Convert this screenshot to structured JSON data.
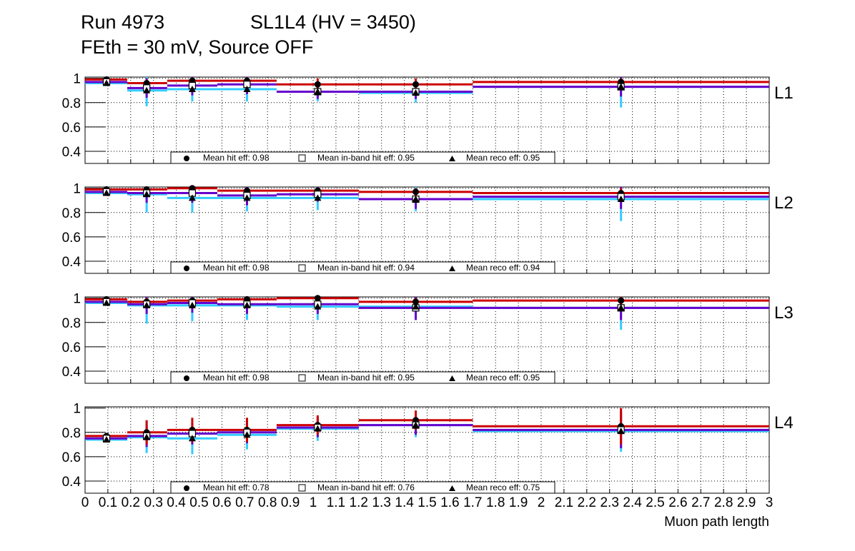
{
  "header": {
    "run": "Run 4973",
    "chamber": "SL1L4 (HV = 3450)",
    "conditions": "FEth = 30 mV, Source OFF"
  },
  "colors": {
    "hit": "#cc0000",
    "inband": "#6600cc",
    "reco": "#33ccff"
  },
  "chart_data": {
    "type": "line",
    "xlabel": "Muon path length",
    "xlim": [
      0,
      3
    ],
    "ylim": [
      0.3,
      1.01
    ],
    "grid": true,
    "x_tick_labels": [
      "0",
      "0.1",
      "0.2",
      "0.3",
      "0.4",
      "0.5",
      "0.6",
      "0.7",
      "0.8",
      "0.9",
      "1",
      "1.1",
      "1.2",
      "1.3",
      "1.4",
      "1.5",
      "1.6",
      "1.7",
      "1.8",
      "1.9",
      "2",
      "2.1",
      "2.2",
      "2.3",
      "2.4",
      "2.5",
      "2.6",
      "2.7",
      "2.8",
      "2.9",
      "3"
    ],
    "y_tick_labels": [
      "0.4",
      "0.6",
      "0.8",
      "1"
    ],
    "bin_edges": [
      0,
      0.185,
      0.36,
      0.58,
      0.84,
      1.2,
      1.7,
      3
    ],
    "point_x": [
      0.094,
      0.27,
      0.47,
      0.71,
      1.02,
      1.45,
      2.35
    ],
    "legend_placement": "bottom-center",
    "panels": [
      {
        "label": "L1",
        "legend": [
          "Mean hit  eff: 0.98",
          "Mean in-band hit eff: 0.95",
          "Mean reco eff: 0.95"
        ],
        "series": [
          {
            "name": "hit eff",
            "values": [
              0.99,
              0.96,
              0.98,
              0.98,
              0.95,
              0.95,
              0.97
            ],
            "err": [
              0.01,
              0.03,
              0.02,
              0.02,
              0.05,
              0.05,
              0.03
            ]
          },
          {
            "name": "in-band hit eff",
            "values": [
              0.97,
              0.92,
              0.94,
              0.95,
              0.89,
              0.89,
              0.93
            ],
            "err": [
              0.02,
              0.08,
              0.08,
              0.08,
              0.06,
              0.06,
              0.08
            ]
          },
          {
            "name": "reco eff",
            "values": [
              0.96,
              0.9,
              0.91,
              0.91,
              0.89,
              0.88,
              0.93
            ],
            "err": [
              0.02,
              0.13,
              0.1,
              0.1,
              0.08,
              0.08,
              0.17
            ]
          }
        ]
      },
      {
        "label": "L2",
        "legend": [
          "Mean hit  eff: 0.98",
          "Mean in-band hit eff: 0.94",
          "Mean reco eff: 0.94"
        ],
        "series": [
          {
            "name": "hit eff",
            "values": [
              0.99,
              0.99,
              1.0,
              0.98,
              0.98,
              0.97,
              0.96
            ],
            "err": [
              0.01,
              0.02,
              0.01,
              0.02,
              0.02,
              0.03,
              0.04
            ]
          },
          {
            "name": "in-band hit eff",
            "values": [
              0.97,
              0.96,
              0.96,
              0.94,
              0.95,
              0.91,
              0.93
            ],
            "err": [
              0.02,
              0.08,
              0.08,
              0.08,
              0.06,
              0.08,
              0.1
            ]
          },
          {
            "name": "reco eff",
            "values": [
              0.96,
              0.95,
              0.92,
              0.92,
              0.92,
              0.91,
              0.91
            ],
            "err": [
              0.02,
              0.15,
              0.12,
              0.11,
              0.1,
              0.1,
              0.18
            ]
          }
        ]
      },
      {
        "label": "L3",
        "legend": [
          "Mean hit  eff: 0.98",
          "Mean in-band hit eff: 0.95",
          "Mean reco eff: 0.95"
        ],
        "series": [
          {
            "name": "hit eff",
            "values": [
              0.99,
              0.97,
              0.98,
              0.99,
              1.0,
              0.97,
              0.98
            ],
            "err": [
              0.01,
              0.03,
              0.02,
              0.01,
              0.01,
              0.03,
              0.03
            ]
          },
          {
            "name": "in-band hit eff",
            "values": [
              0.97,
              0.95,
              0.96,
              0.95,
              0.95,
              0.92,
              0.92
            ],
            "err": [
              0.02,
              0.08,
              0.08,
              0.08,
              0.08,
              0.1,
              0.1
            ]
          },
          {
            "name": "reco eff",
            "values": [
              0.96,
              0.94,
              0.94,
              0.94,
              0.93,
              0.93,
              0.92
            ],
            "err": [
              0.02,
              0.15,
              0.13,
              0.12,
              0.11,
              0.1,
              0.18
            ]
          }
        ]
      },
      {
        "label": "L4",
        "legend": [
          "Mean hit  eff: 0.78",
          "Mean in-band hit eff: 0.76",
          "Mean reco eff: 0.75"
        ],
        "series": [
          {
            "name": "hit eff",
            "values": [
              0.77,
              0.8,
              0.82,
              0.82,
              0.86,
              0.9,
              0.85
            ],
            "err": [
              0.02,
              0.1,
              0.1,
              0.1,
              0.08,
              0.08,
              0.15
            ]
          },
          {
            "name": "in-band hit eff",
            "values": [
              0.75,
              0.77,
              0.79,
              0.8,
              0.84,
              0.86,
              0.82
            ],
            "err": [
              0.02,
              0.09,
              0.09,
              0.09,
              0.08,
              0.08,
              0.15
            ]
          },
          {
            "name": "reco eff",
            "values": [
              0.74,
              0.76,
              0.75,
              0.78,
              0.83,
              0.86,
              0.81
            ],
            "err": [
              0.02,
              0.13,
              0.13,
              0.12,
              0.1,
              0.1,
              0.17
            ]
          }
        ]
      }
    ]
  }
}
